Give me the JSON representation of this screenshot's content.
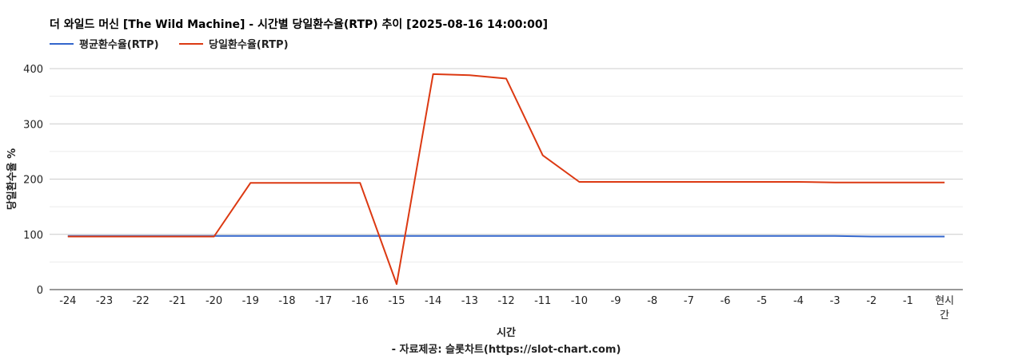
{
  "chart_data": {
    "type": "line",
    "title": "더 와일드 머신 [The Wild Machine] - 시간별 당일환수율(RTP) 추이 [2025-08-16 14:00:00]",
    "xlabel": "시간",
    "source": "- 자료제공: 슬롯차트(https://slot-chart.com)",
    "ylabel": "당일환수율 %",
    "categories": [
      "-24",
      "-23",
      "-22",
      "-21",
      "-20",
      "-19",
      "-18",
      "-17",
      "-16",
      "-15",
      "-14",
      "-13",
      "-12",
      "-11",
      "-10",
      "-9",
      "-8",
      "-7",
      "-6",
      "-5",
      "-4",
      "-3",
      "-2",
      "-1",
      "현시간"
    ],
    "ylim": [
      0,
      400
    ],
    "yticks": [
      0,
      100,
      200,
      300,
      400
    ],
    "grid": true,
    "legend_position": "top-left",
    "series": [
      {
        "name": "평균환수율(RTP)",
        "color": "#3366cc",
        "values": [
          97,
          97,
          97,
          97,
          97,
          97,
          97,
          97,
          97,
          97,
          97,
          97,
          97,
          97,
          97,
          97,
          97,
          97,
          97,
          97,
          97,
          97,
          96,
          96,
          96
        ]
      },
      {
        "name": "당일환수율(RTP)",
        "color": "#dc3912",
        "values": [
          96,
          96,
          96,
          96,
          96,
          193,
          193,
          193,
          193,
          10,
          390,
          388,
          382,
          243,
          195,
          195,
          195,
          195,
          195,
          195,
          195,
          194,
          194,
          194,
          194
        ]
      }
    ]
  }
}
